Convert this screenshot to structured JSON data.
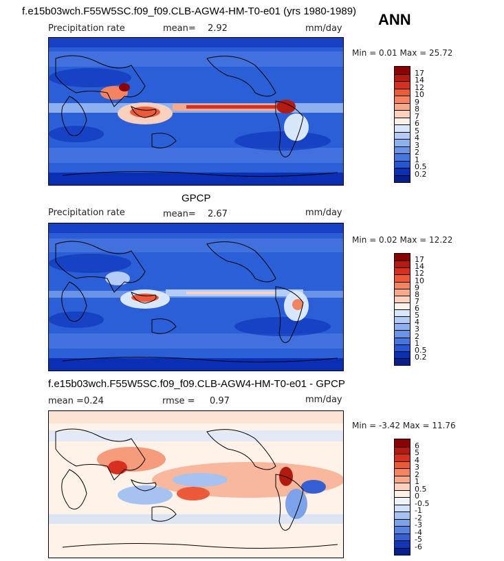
{
  "header": {
    "run_title": "f.e15b03wch.F55W5SC.f09_f09.CLB-AGW4-HM-T0-e01 (yrs 1980-1989)",
    "season": "ANN"
  },
  "panels": [
    {
      "id": "model",
      "field_label": "Precipitation rate",
      "mean_label": "mean=",
      "mean_value": "2.92",
      "units": "mm/day",
      "minmax_text": "Min =    0.01  Max =   25.72",
      "colorbar": {
        "levels": [
          "17",
          "14",
          "12",
          "10",
          "9",
          "8",
          "7",
          "6",
          "5",
          "4",
          "3",
          "2",
          "1",
          "0.5",
          "0.2"
        ],
        "colors": [
          "#8b0000",
          "#b31b10",
          "#d7301f",
          "#ec5a3a",
          "#f4845f",
          "#f7a98a",
          "#fbd0bd",
          "#fff2e8",
          "#d9e7fb",
          "#b4cdf6",
          "#8db1ee",
          "#6a93e6",
          "#4676dd",
          "#2556d3",
          "#0a2fb5",
          "#061f8a"
        ]
      }
    },
    {
      "id": "obs",
      "heading": "GPCP",
      "field_label": "Precipitation rate",
      "mean_label": "mean=",
      "mean_value": "2.67",
      "units": "mm/day",
      "minmax_text": "Min =    0.02  Max =   12.22",
      "colorbar": {
        "levels": [
          "17",
          "14",
          "12",
          "10",
          "9",
          "8",
          "7",
          "6",
          "5",
          "4",
          "3",
          "2",
          "1",
          "0.5",
          "0.2"
        ],
        "colors": [
          "#8b0000",
          "#b31b10",
          "#d7301f",
          "#ec5a3a",
          "#f4845f",
          "#f7a98a",
          "#fbd0bd",
          "#fff2e8",
          "#d9e7fb",
          "#b4cdf6",
          "#8db1ee",
          "#6a93e6",
          "#4676dd",
          "#2556d3",
          "#0a2fb5",
          "#061f8a"
        ]
      }
    },
    {
      "id": "diff",
      "heading": "f.e15b03wch.F55W5SC.f09_f09.CLB-AGW4-HM-T0-e01 - GPCP",
      "mean_label": "mean =",
      "mean_value": "0.24",
      "rmse_label": "rmse =",
      "rmse_value": "0.97",
      "units": "mm/day",
      "minmax_text": "Min =  -3.42  Max =   11.76",
      "colorbar": {
        "levels": [
          "6",
          "5",
          "4",
          "3",
          "2",
          "1",
          "0.5",
          "0",
          "-0.5",
          "-1",
          "-2",
          "-3",
          "-4",
          "-5",
          "-6"
        ],
        "colors": [
          "#8b0000",
          "#b31b10",
          "#d7301f",
          "#ec5a3a",
          "#f4845f",
          "#f7a98a",
          "#fbd0bd",
          "#fff2e8",
          "#eef4fd",
          "#cfe0fa",
          "#a6c2f1",
          "#7ea2e9",
          "#5882df",
          "#3460d4",
          "#1236b8",
          "#06208f"
        ]
      }
    }
  ]
}
